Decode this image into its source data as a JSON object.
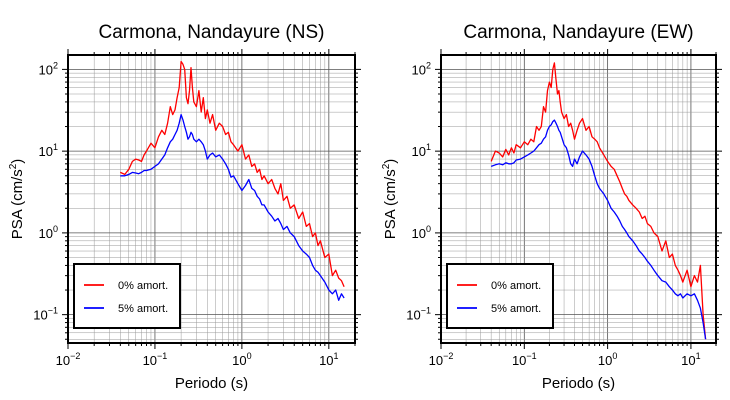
{
  "chart_data": [
    {
      "type": "line",
      "title": "Carmona, Nandayure (NS)",
      "xlabel": "Periodo (s)",
      "ylabel_main": "PSA (cm/s",
      "ylabel_sup": "2",
      "ylabel_close": ")",
      "xscale": "log",
      "yscale": "log",
      "xlim": [
        0.01,
        20
      ],
      "ylim": [
        0.045,
        150
      ],
      "grid": true,
      "legend_position": "bottom-left",
      "x_ticks": [
        {
          "value": 0.01,
          "base": "10",
          "exp": "−2"
        },
        {
          "value": 0.1,
          "base": "10",
          "exp": "−1"
        },
        {
          "value": 1,
          "base": "10",
          "exp": "0"
        },
        {
          "value": 10,
          "base": "10",
          "exp": "1"
        }
      ],
      "y_ticks": [
        {
          "value": 0.1,
          "base": "10",
          "exp": "−1"
        },
        {
          "value": 1,
          "base": "10",
          "exp": "0"
        },
        {
          "value": 10,
          "base": "10",
          "exp": "1"
        },
        {
          "value": 100,
          "base": "10",
          "exp": "2"
        }
      ],
      "series": [
        {
          "name": "0% amort.",
          "color": "#ff0000",
          "x": [
            0.04,
            0.045,
            0.05,
            0.055,
            0.06,
            0.065,
            0.07,
            0.075,
            0.08,
            0.09,
            0.1,
            0.11,
            0.12,
            0.13,
            0.14,
            0.15,
            0.16,
            0.17,
            0.18,
            0.19,
            0.2,
            0.21,
            0.22,
            0.23,
            0.24,
            0.25,
            0.26,
            0.27,
            0.28,
            0.3,
            0.32,
            0.34,
            0.36,
            0.38,
            0.4,
            0.43,
            0.46,
            0.5,
            0.55,
            0.6,
            0.65,
            0.7,
            0.75,
            0.8,
            0.9,
            1.0,
            1.1,
            1.2,
            1.3,
            1.4,
            1.5,
            1.6,
            1.7,
            1.8,
            2.0,
            2.2,
            2.4,
            2.6,
            2.8,
            3.0,
            3.3,
            3.6,
            4.0,
            4.5,
            5.0,
            5.5,
            6.0,
            6.5,
            7.0,
            7.5,
            8.0,
            9.0,
            10.0,
            11.0,
            12.0,
            13.0,
            14.0,
            15.0
          ],
          "y": [
            5.5,
            5.2,
            6.0,
            7.5,
            8.0,
            7.8,
            7.5,
            9.0,
            10.0,
            12.5,
            11.0,
            15.0,
            18.0,
            16.0,
            22.0,
            35.0,
            28.0,
            32.0,
            45.0,
            60.0,
            125.0,
            115.0,
            100.0,
            45.0,
            38.0,
            55.0,
            105.0,
            60.0,
            40.0,
            35.0,
            55.0,
            30.0,
            45.0,
            25.0,
            32.0,
            22.0,
            28.0,
            18.0,
            22.0,
            20.0,
            16.0,
            17.0,
            13.0,
            12.0,
            10.0,
            12.0,
            8.0,
            9.0,
            6.5,
            7.0,
            5.5,
            6.0,
            4.5,
            5.0,
            4.0,
            4.5,
            3.5,
            3.0,
            4.0,
            2.5,
            2.8,
            2.0,
            2.2,
            1.5,
            1.8,
            1.2,
            1.3,
            0.9,
            1.0,
            0.7,
            0.8,
            0.5,
            0.55,
            0.3,
            0.35,
            0.28,
            0.26,
            0.22
          ]
        },
        {
          "name": "5% amort.",
          "color": "#0000ff",
          "x": [
            0.04,
            0.045,
            0.05,
            0.055,
            0.06,
            0.065,
            0.07,
            0.075,
            0.08,
            0.09,
            0.1,
            0.11,
            0.12,
            0.13,
            0.14,
            0.15,
            0.16,
            0.17,
            0.18,
            0.19,
            0.2,
            0.21,
            0.22,
            0.23,
            0.24,
            0.25,
            0.26,
            0.27,
            0.28,
            0.3,
            0.32,
            0.34,
            0.36,
            0.38,
            0.4,
            0.43,
            0.46,
            0.5,
            0.55,
            0.6,
            0.65,
            0.7,
            0.75,
            0.8,
            0.9,
            1.0,
            1.1,
            1.2,
            1.3,
            1.4,
            1.5,
            1.6,
            1.7,
            1.8,
            2.0,
            2.2,
            2.4,
            2.6,
            2.8,
            3.0,
            3.3,
            3.6,
            4.0,
            4.5,
            5.0,
            5.5,
            6.0,
            6.5,
            7.0,
            7.5,
            8.0,
            9.0,
            10.0,
            11.0,
            12.0,
            13.0,
            14.0,
            15.0
          ],
          "y": [
            5.0,
            5.0,
            5.2,
            5.5,
            5.4,
            5.3,
            5.5,
            5.8,
            5.8,
            6.0,
            6.5,
            7.0,
            8.0,
            9.0,
            11.0,
            13.0,
            14.0,
            16.0,
            18.0,
            22.0,
            28.0,
            24.0,
            20.0,
            17.0,
            14.0,
            15.0,
            17.0,
            16.0,
            14.0,
            13.0,
            14.0,
            13.0,
            12.0,
            10.0,
            8.0,
            9.0,
            9.5,
            8.5,
            9.0,
            8.0,
            7.0,
            6.0,
            4.8,
            5.0,
            4.0,
            3.3,
            3.8,
            4.5,
            3.5,
            3.3,
            2.8,
            2.6,
            2.2,
            2.2,
            1.8,
            1.6,
            1.4,
            1.5,
            1.3,
            1.1,
            1.2,
            1.0,
            0.9,
            0.7,
            0.6,
            0.55,
            0.5,
            0.4,
            0.35,
            0.33,
            0.3,
            0.25,
            0.2,
            0.18,
            0.2,
            0.15,
            0.18,
            0.16
          ]
        }
      ]
    },
    {
      "type": "line",
      "title": "Carmona, Nandayure (EW)",
      "xlabel": "Periodo (s)",
      "ylabel_main": "PSA (cm/s",
      "ylabel_sup": "2",
      "ylabel_close": ")",
      "xscale": "log",
      "yscale": "log",
      "xlim": [
        0.01,
        20
      ],
      "ylim": [
        0.045,
        150
      ],
      "grid": true,
      "legend_position": "bottom-left",
      "x_ticks": [
        {
          "value": 0.01,
          "base": "10",
          "exp": "−2"
        },
        {
          "value": 0.1,
          "base": "10",
          "exp": "−1"
        },
        {
          "value": 1,
          "base": "10",
          "exp": "0"
        },
        {
          "value": 10,
          "base": "10",
          "exp": "1"
        }
      ],
      "y_ticks": [
        {
          "value": 0.1,
          "base": "10",
          "exp": "−1"
        },
        {
          "value": 1,
          "base": "10",
          "exp": "0"
        },
        {
          "value": 10,
          "base": "10",
          "exp": "1"
        },
        {
          "value": 100,
          "base": "10",
          "exp": "2"
        }
      ],
      "series": [
        {
          "name": "0% amort.",
          "color": "#ff0000",
          "x": [
            0.04,
            0.045,
            0.05,
            0.055,
            0.06,
            0.065,
            0.07,
            0.075,
            0.08,
            0.09,
            0.1,
            0.11,
            0.12,
            0.13,
            0.14,
            0.15,
            0.16,
            0.17,
            0.18,
            0.19,
            0.2,
            0.21,
            0.22,
            0.23,
            0.24,
            0.25,
            0.26,
            0.27,
            0.28,
            0.3,
            0.32,
            0.34,
            0.36,
            0.38,
            0.4,
            0.43,
            0.46,
            0.5,
            0.55,
            0.6,
            0.65,
            0.7,
            0.75,
            0.8,
            0.9,
            1.0,
            1.1,
            1.2,
            1.3,
            1.4,
            1.5,
            1.6,
            1.7,
            1.8,
            2.0,
            2.2,
            2.4,
            2.6,
            2.8,
            3.0,
            3.3,
            3.6,
            4.0,
            4.5,
            5.0,
            5.5,
            6.0,
            6.5,
            7.0,
            7.5,
            8.0,
            9.0,
            10.0,
            11.0,
            12.0,
            13.0,
            14.0,
            15.0
          ],
          "y": [
            7.5,
            10.0,
            9.5,
            8.5,
            10.5,
            9.0,
            11.0,
            9.5,
            12.0,
            11.0,
            13.0,
            12.0,
            14.0,
            13.0,
            20.0,
            18.0,
            20.0,
            35.0,
            30.0,
            55.0,
            70.0,
            60.0,
            100.0,
            120.0,
            75.0,
            50.0,
            55.0,
            40.0,
            30.0,
            25.0,
            28.0,
            20.0,
            22.0,
            18.0,
            14.0,
            18.0,
            22.0,
            25.0,
            18.0,
            20.0,
            15.0,
            14.0,
            13.0,
            11.0,
            9.0,
            7.5,
            6.5,
            6.0,
            5.0,
            4.2,
            3.5,
            3.0,
            2.8,
            2.5,
            2.2,
            2.0,
            1.8,
            1.5,
            1.6,
            1.3,
            1.2,
            1.0,
            0.9,
            0.6,
            0.8,
            0.5,
            0.55,
            0.4,
            0.35,
            0.3,
            0.25,
            0.35,
            0.22,
            0.3,
            0.25,
            0.4,
            0.1,
            0.05
          ]
        },
        {
          "name": "5% amort.",
          "color": "#0000ff",
          "x": [
            0.04,
            0.045,
            0.05,
            0.055,
            0.06,
            0.065,
            0.07,
            0.075,
            0.08,
            0.09,
            0.1,
            0.11,
            0.12,
            0.13,
            0.14,
            0.15,
            0.16,
            0.17,
            0.18,
            0.19,
            0.2,
            0.21,
            0.22,
            0.23,
            0.24,
            0.25,
            0.26,
            0.27,
            0.28,
            0.3,
            0.32,
            0.34,
            0.36,
            0.38,
            0.4,
            0.43,
            0.46,
            0.5,
            0.55,
            0.6,
            0.65,
            0.7,
            0.75,
            0.8,
            0.9,
            1.0,
            1.1,
            1.2,
            1.3,
            1.4,
            1.5,
            1.6,
            1.7,
            1.8,
            2.0,
            2.2,
            2.4,
            2.6,
            2.8,
            3.0,
            3.3,
            3.6,
            4.0,
            4.5,
            5.0,
            5.5,
            6.0,
            6.5,
            7.0,
            7.5,
            8.0,
            9.0,
            10.0,
            11.0,
            12.0,
            13.0,
            14.0,
            15.0
          ],
          "y": [
            6.5,
            6.8,
            7.0,
            6.8,
            7.2,
            7.0,
            7.0,
            7.2,
            7.8,
            8.0,
            8.5,
            9.0,
            9.5,
            10.0,
            11.0,
            12.0,
            12.5,
            14.0,
            15.0,
            18.0,
            20.0,
            21.0,
            23.0,
            24.0,
            22.0,
            20.0,
            18.0,
            17.0,
            15.0,
            12.0,
            11.0,
            9.0,
            7.0,
            6.5,
            8.0,
            7.0,
            8.5,
            10.0,
            9.0,
            8.0,
            6.5,
            5.0,
            4.0,
            3.5,
            3.0,
            2.5,
            2.0,
            1.8,
            1.6,
            1.4,
            1.2,
            1.1,
            1.0,
            0.9,
            0.8,
            0.7,
            0.6,
            0.55,
            0.5,
            0.45,
            0.4,
            0.35,
            0.3,
            0.26,
            0.25,
            0.22,
            0.2,
            0.18,
            0.17,
            0.18,
            0.16,
            0.18,
            0.17,
            0.18,
            0.15,
            0.12,
            0.08,
            0.05
          ]
        }
      ]
    }
  ]
}
